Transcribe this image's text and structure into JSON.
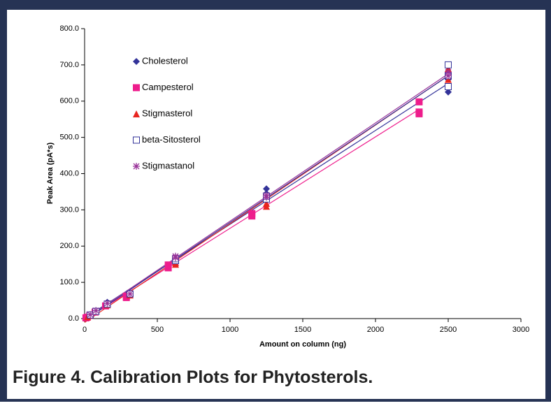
{
  "chart_data": {
    "type": "scatter",
    "caption": "Figure 4. Calibration Plots for Phytosterols.",
    "x_label": "Amount on column (ng)",
    "y_label": "Peak Area (pA*s)",
    "xlim": [
      0,
      3000
    ],
    "xticks": [
      0,
      500,
      1000,
      1500,
      2000,
      2500,
      3000
    ],
    "ylim": [
      0,
      800
    ],
    "yticks": [
      {
        "value": 0,
        "label": "0.0"
      },
      {
        "value": 100,
        "label": "100.0"
      },
      {
        "value": 200,
        "label": "200.0"
      },
      {
        "value": 300,
        "label": "300.0"
      },
      {
        "value": 400,
        "label": "400.0"
      },
      {
        "value": 500,
        "label": "500.0"
      },
      {
        "value": 600,
        "label": "600.0"
      },
      {
        "value": 700,
        "label": "700.0"
      },
      {
        "value": 800,
        "label": "800.0"
      }
    ],
    "grid": false,
    "legend": "top-left",
    "trendline": "linear",
    "series": [
      {
        "name": "Cholesterol",
        "color": "#333399",
        "marker": "diamond",
        "x": [
          10,
          20,
          39,
          78,
          78,
          156,
          156,
          312,
          312,
          625,
          625,
          1250,
          1250,
          1250,
          2500,
          2500,
          2500
        ],
        "values": [
          2,
          5,
          10,
          20,
          22,
          38,
          45,
          65,
          70,
          160,
          168,
          330,
          345,
          358,
          625,
          635,
          660
        ]
      },
      {
        "name": "Campesterol",
        "color": "#ee1d8c",
        "marker": "square",
        "x": [
          9,
          18,
          36,
          72,
          144,
          287,
          287,
          575,
          575,
          1150,
          1150,
          2300,
          2300,
          2300
        ],
        "values": [
          2,
          4,
          9,
          18,
          35,
          58,
          62,
          140,
          148,
          283,
          290,
          565,
          570,
          598
        ]
      },
      {
        "name": "Stigmasterol",
        "color": "#e8251f",
        "marker": "triangle",
        "x": [
          20,
          39,
          78,
          156,
          312,
          625,
          625,
          1250,
          1250,
          2500,
          2500,
          2500
        ],
        "values": [
          5,
          10,
          20,
          38,
          65,
          150,
          155,
          310,
          318,
          660,
          680,
          690
        ]
      },
      {
        "name": "beta-Sitosterol",
        "color": "#333399",
        "marker": "open-square",
        "x": [
          39,
          78,
          156,
          312,
          625,
          625,
          1250,
          1250,
          2500,
          2500,
          2500
        ],
        "values": [
          10,
          20,
          40,
          68,
          160,
          165,
          330,
          338,
          640,
          670,
          700
        ]
      },
      {
        "name": "Stigmastanol",
        "color": "#993399",
        "marker": "asterisk",
        "x": [
          39,
          78,
          156,
          312,
          625,
          625,
          1250,
          1250,
          2500,
          2500
        ],
        "values": [
          11,
          22,
          42,
          68,
          168,
          172,
          335,
          340,
          670,
          680
        ]
      }
    ]
  }
}
